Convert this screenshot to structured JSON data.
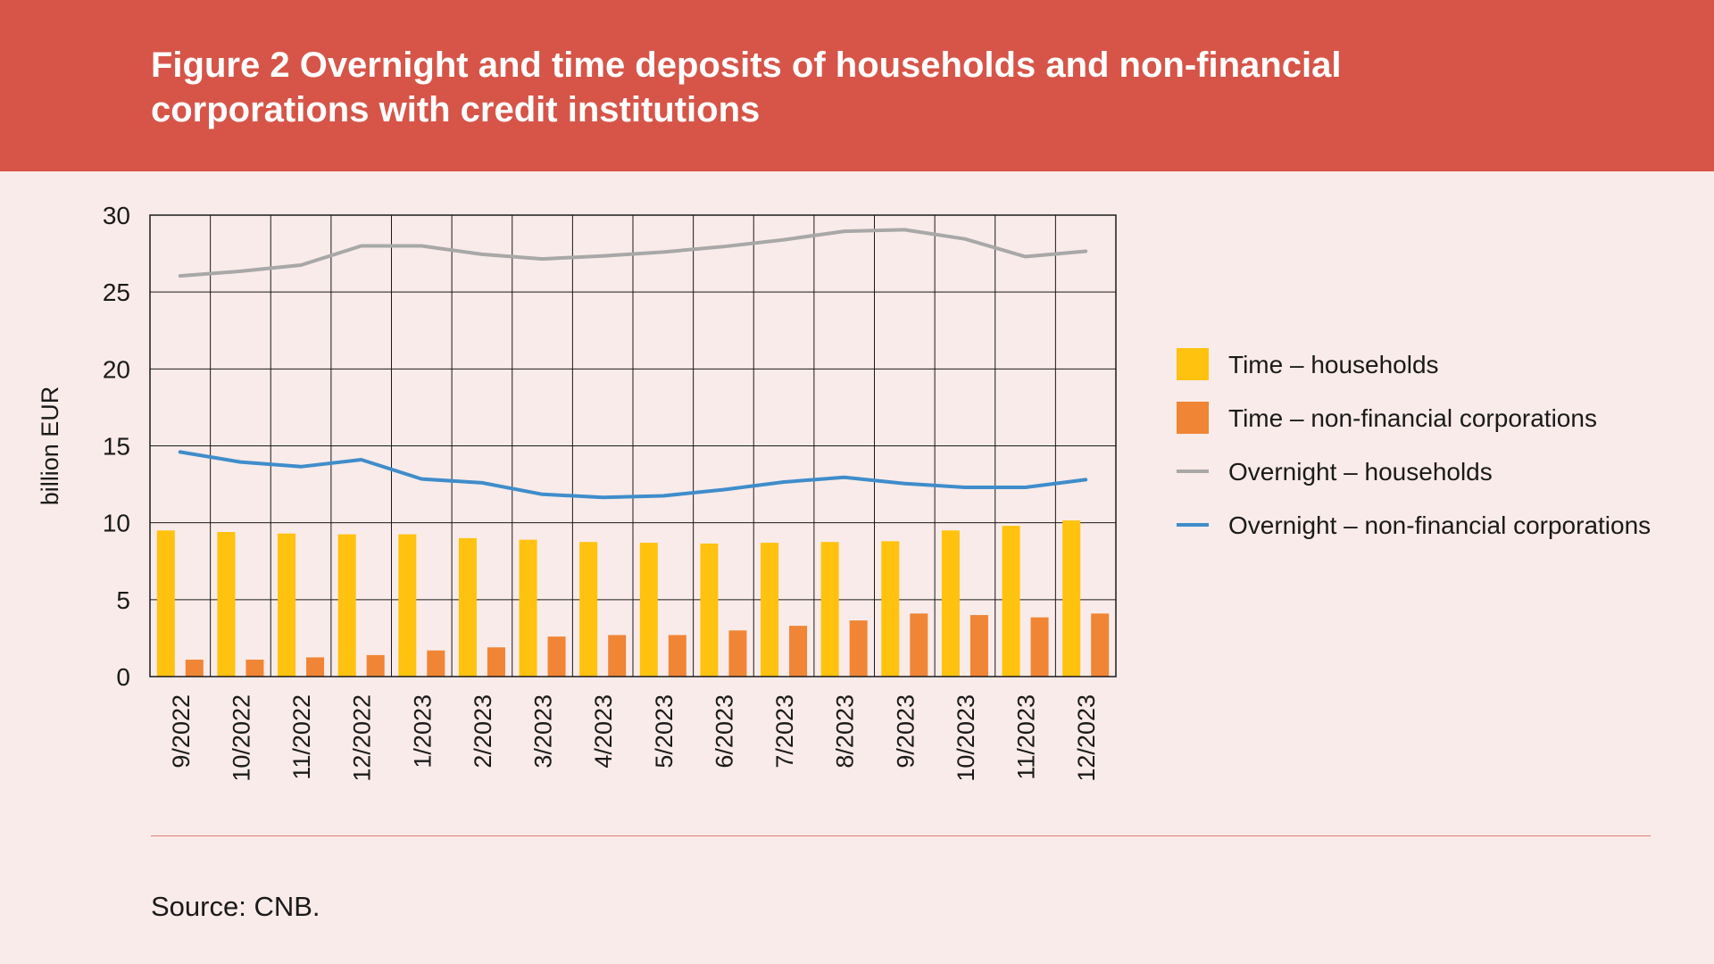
{
  "page": {
    "title": "Figure 2 Overnight and time deposits of households and non-financial corporations with credit institutions",
    "source": "Source: CNB."
  },
  "chart_data": {
    "type": "bar",
    "ylabel": "billion EUR",
    "ylim": [
      0,
      30
    ],
    "yticks": [
      0,
      5,
      10,
      15,
      20,
      25,
      30
    ],
    "grid": true,
    "legend_position": "right",
    "categories": [
      "9/2022",
      "10/2022",
      "11/2022",
      "12/2022",
      "1/2023",
      "2/2023",
      "3/2023",
      "4/2023",
      "5/2023",
      "6/2023",
      "7/2023",
      "8/2023",
      "9/2023",
      "10/2023",
      "11/2023",
      "12/2023"
    ],
    "series": [
      {
        "name": "Time – households",
        "kind": "bar",
        "color": "#ffc20e",
        "values": [
          9.5,
          9.4,
          9.3,
          9.25,
          9.25,
          9.0,
          8.9,
          8.75,
          8.7,
          8.65,
          8.7,
          8.75,
          8.8,
          9.5,
          9.8,
          10.15
        ]
      },
      {
        "name": "Time – non-financial corporations",
        "kind": "bar",
        "color": "#f08535",
        "values": [
          1.1,
          1.1,
          1.25,
          1.4,
          1.7,
          1.9,
          2.6,
          2.7,
          2.7,
          3.0,
          3.3,
          3.65,
          4.1,
          4.0,
          3.85,
          4.1
        ]
      },
      {
        "name": "Overnight – households",
        "kind": "line",
        "color": "#a8a8a8",
        "values": [
          26.05,
          26.35,
          26.75,
          28.0,
          28.0,
          27.45,
          27.15,
          27.35,
          27.6,
          27.95,
          28.4,
          28.95,
          29.05,
          28.45,
          27.3,
          27.65
        ]
      },
      {
        "name": "Overnight – non-financial corporations",
        "kind": "line",
        "color": "#3f8dcb",
        "values": [
          14.6,
          13.95,
          13.65,
          14.1,
          12.85,
          12.6,
          11.85,
          11.65,
          11.75,
          12.15,
          12.65,
          12.95,
          12.55,
          12.3,
          12.3,
          12.8
        ]
      }
    ]
  }
}
